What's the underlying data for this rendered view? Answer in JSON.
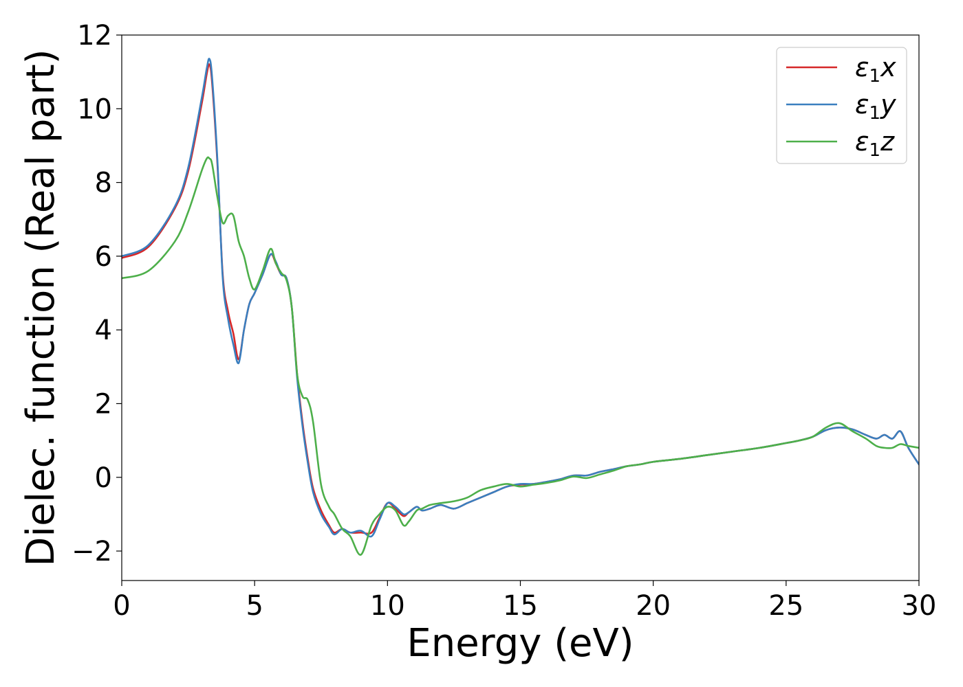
{
  "chart_data": {
    "type": "line",
    "xlabel": "Energy (eV)",
    "ylabel": "Dielec. function (Real part)",
    "xlim": [
      0,
      30
    ],
    "ylim": [
      -2.8,
      12
    ],
    "xticks": [
      0,
      5,
      10,
      15,
      20,
      25,
      30
    ],
    "yticks": [
      -2,
      0,
      2,
      4,
      6,
      8,
      10,
      12
    ],
    "ytick_labels": [
      "−2",
      "0",
      "2",
      "4",
      "6",
      "8",
      "10",
      "12"
    ],
    "grid": false,
    "legend_position": "top-right",
    "series": [
      {
        "name": "ε1x",
        "legend_base": "ε",
        "legend_sub": "1",
        "legend_var": "x",
        "color": "#d62728",
        "x": [
          0,
          1,
          2,
          2.5,
          3,
          3.2,
          3.3,
          3.4,
          3.6,
          3.8,
          4.0,
          4.2,
          4.4,
          4.6,
          4.8,
          5.0,
          5.3,
          5.6,
          5.8,
          6.0,
          6.2,
          6.4,
          6.6,
          6.8,
          7.0,
          7.2,
          7.5,
          7.8,
          8.0,
          8.3,
          8.6,
          9.0,
          9.4,
          9.7,
          10.0,
          10.3,
          10.6,
          10.8,
          11.1,
          11.3,
          11.6,
          12.0,
          12.5,
          13.0,
          13.5,
          14.0,
          14.5,
          15.0,
          15.5,
          16.0,
          16.5,
          17.0,
          17.5,
          18.0,
          18.5,
          19.0,
          19.5,
          20.0,
          21.0,
          22.0,
          23.0,
          24.0,
          25.0,
          25.5,
          26.0,
          26.5,
          27.0,
          27.5,
          28.0,
          28.4,
          28.7,
          29.0,
          29.3,
          29.6,
          30.0
        ],
        "y": [
          5.95,
          6.25,
          7.3,
          8.3,
          10.1,
          10.95,
          11.2,
          10.7,
          8.5,
          5.5,
          4.5,
          3.9,
          3.2,
          4.0,
          4.7,
          5.0,
          5.5,
          6.05,
          5.8,
          5.5,
          5.4,
          4.6,
          2.8,
          1.5,
          0.5,
          -0.3,
          -0.9,
          -1.3,
          -1.5,
          -1.4,
          -1.5,
          -1.5,
          -1.5,
          -1.1,
          -0.7,
          -0.85,
          -1.05,
          -0.95,
          -0.8,
          -0.9,
          -0.85,
          -0.75,
          -0.85,
          -0.7,
          -0.55,
          -0.4,
          -0.25,
          -0.2,
          -0.18,
          -0.12,
          -0.05,
          0.05,
          0.05,
          0.15,
          0.22,
          0.3,
          0.35,
          0.42,
          0.5,
          0.6,
          0.7,
          0.8,
          0.93,
          1.0,
          1.1,
          1.28,
          1.35,
          1.3,
          1.15,
          1.05,
          1.15,
          1.05,
          1.25,
          0.8,
          0.35
        ]
      },
      {
        "name": "ε1y",
        "legend_base": "ε",
        "legend_sub": "1",
        "legend_var": "y",
        "color": "#3a7fbf",
        "x": [
          0,
          1,
          2,
          2.5,
          3,
          3.2,
          3.3,
          3.4,
          3.6,
          3.8,
          4.0,
          4.2,
          4.4,
          4.6,
          4.8,
          5.0,
          5.3,
          5.6,
          5.8,
          6.0,
          6.2,
          6.4,
          6.6,
          6.8,
          7.0,
          7.2,
          7.5,
          7.8,
          8.0,
          8.3,
          8.6,
          9.0,
          9.4,
          9.7,
          10.0,
          10.3,
          10.6,
          10.8,
          11.1,
          11.3,
          11.6,
          12.0,
          12.5,
          13.0,
          13.5,
          14.0,
          14.5,
          15.0,
          15.5,
          16.0,
          16.5,
          17.0,
          17.5,
          18.0,
          18.5,
          19.0,
          19.5,
          20.0,
          21.0,
          22.0,
          23.0,
          24.0,
          25.0,
          25.5,
          26.0,
          26.5,
          27.0,
          27.5,
          28.0,
          28.4,
          28.7,
          29.0,
          29.3,
          29.6,
          30.0
        ],
        "y": [
          6.0,
          6.3,
          7.35,
          8.4,
          10.25,
          11.1,
          11.35,
          10.85,
          8.6,
          5.4,
          4.3,
          3.6,
          3.1,
          4.0,
          4.7,
          5.0,
          5.5,
          6.05,
          5.85,
          5.5,
          5.4,
          4.6,
          2.7,
          1.4,
          0.4,
          -0.4,
          -1.0,
          -1.35,
          -1.55,
          -1.4,
          -1.5,
          -1.45,
          -1.6,
          -1.15,
          -0.7,
          -0.8,
          -1.0,
          -0.95,
          -0.8,
          -0.9,
          -0.85,
          -0.75,
          -0.85,
          -0.7,
          -0.55,
          -0.4,
          -0.25,
          -0.18,
          -0.18,
          -0.12,
          -0.05,
          0.05,
          0.05,
          0.15,
          0.22,
          0.3,
          0.35,
          0.42,
          0.5,
          0.6,
          0.7,
          0.8,
          0.93,
          1.0,
          1.1,
          1.28,
          1.35,
          1.3,
          1.15,
          1.05,
          1.15,
          1.05,
          1.25,
          0.8,
          0.35
        ]
      },
      {
        "name": "ε1z",
        "legend_base": "ε",
        "legend_sub": "1",
        "legend_var": "z",
        "color": "#4daf4a",
        "x": [
          0,
          1,
          2,
          2.5,
          3,
          3.2,
          3.3,
          3.4,
          3.6,
          3.8,
          4.0,
          4.2,
          4.4,
          4.6,
          4.8,
          5.0,
          5.3,
          5.6,
          5.8,
          6.0,
          6.2,
          6.4,
          6.6,
          6.8,
          7.0,
          7.2,
          7.5,
          7.8,
          8.0,
          8.3,
          8.6,
          9.0,
          9.4,
          9.7,
          10.0,
          10.3,
          10.6,
          10.8,
          11.1,
          11.3,
          11.6,
          12.0,
          12.5,
          13.0,
          13.5,
          14.0,
          14.5,
          15.0,
          15.5,
          16.0,
          16.5,
          17.0,
          17.5,
          18.0,
          18.5,
          19.0,
          19.5,
          20.0,
          21.0,
          22.0,
          23.0,
          24.0,
          25.0,
          25.5,
          26.0,
          26.5,
          27.0,
          27.5,
          28.0,
          28.4,
          28.7,
          29.0,
          29.3,
          29.6,
          30.0
        ],
        "y": [
          5.4,
          5.6,
          6.4,
          7.2,
          8.3,
          8.65,
          8.65,
          8.5,
          7.6,
          6.9,
          7.1,
          7.1,
          6.4,
          6.0,
          5.4,
          5.1,
          5.6,
          6.2,
          5.8,
          5.55,
          5.35,
          4.6,
          2.8,
          2.2,
          2.1,
          1.5,
          -0.2,
          -0.8,
          -1.0,
          -1.4,
          -1.6,
          -2.1,
          -1.3,
          -1.0,
          -0.8,
          -0.9,
          -1.3,
          -1.2,
          -0.9,
          -0.85,
          -0.75,
          -0.7,
          -0.65,
          -0.55,
          -0.35,
          -0.25,
          -0.18,
          -0.25,
          -0.2,
          -0.15,
          -0.08,
          0.02,
          -0.02,
          0.08,
          0.18,
          0.3,
          0.35,
          0.42,
          0.5,
          0.6,
          0.7,
          0.8,
          0.93,
          1.0,
          1.1,
          1.35,
          1.47,
          1.25,
          1.05,
          0.85,
          0.8,
          0.8,
          0.9,
          0.85,
          0.8
        ]
      }
    ]
  }
}
